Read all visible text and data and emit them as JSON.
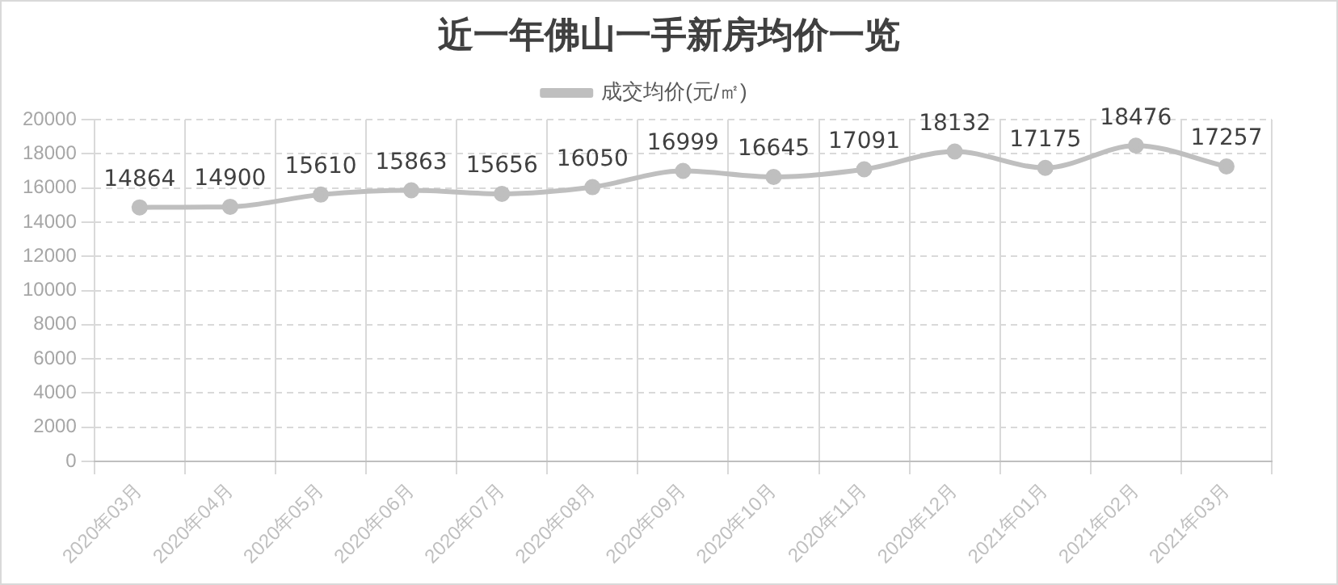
{
  "chart_data": {
    "type": "line",
    "title": "近一年佛山一手新房均价一览",
    "categories": [
      "2020年03月",
      "2020年04月",
      "2020年05月",
      "2020年06月",
      "2020年07月",
      "2020年08月",
      "2020年09月",
      "2020年10月",
      "2020年11月",
      "2020年12月",
      "2021年01月",
      "2021年02月",
      "2021年03月"
    ],
    "series": [
      {
        "name": "成交均价(元/㎡)",
        "color": "#bfbfbf",
        "values": [
          14864,
          14900,
          15610,
          15863,
          15656,
          16050,
          16999,
          16645,
          17091,
          18132,
          17175,
          18476,
          17257
        ]
      }
    ],
    "ylim": [
      0,
      20000
    ],
    "yticks": [
      0,
      2000,
      4000,
      6000,
      8000,
      10000,
      12000,
      14000,
      16000,
      18000,
      20000
    ],
    "grid": true,
    "legend": "top",
    "marker": "circle",
    "data_labels": true
  }
}
